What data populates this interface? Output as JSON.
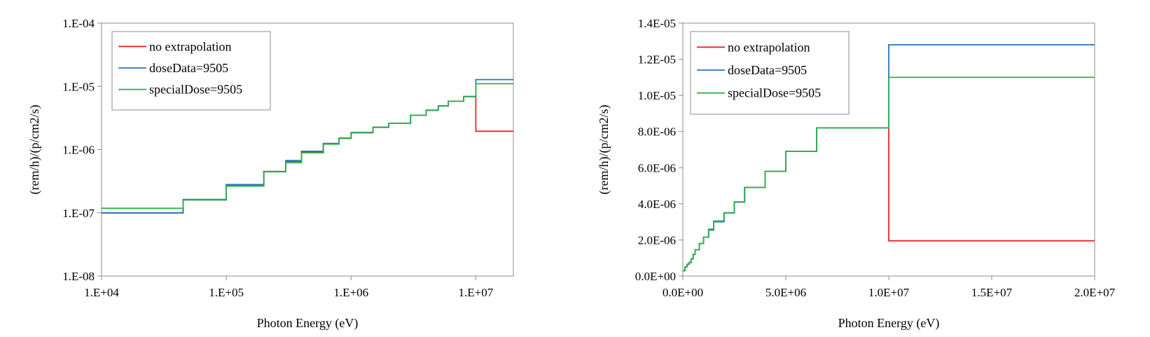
{
  "chart_data": [
    {
      "type": "line",
      "log_x": true,
      "log_y": true,
      "xlabel": "Photon Energy (eV)",
      "ylabel": "(rem/h)/(p/cm2/s)",
      "xlim": [
        10000,
        20000000
      ],
      "ylim": [
        1e-08,
        0.0001
      ],
      "xticks": [
        "1.E+04",
        "1.E+05",
        "1.E+06",
        "1.E+07"
      ],
      "xtick_values": [
        10000,
        100000,
        1000000,
        10000000
      ],
      "yticks": [
        "1.E-08",
        "1.E-07",
        "1.E-06",
        "1.E-05",
        "1.E-04"
      ],
      "ytick_values": [
        1e-08,
        1e-07,
        1e-06,
        1e-05,
        0.0001
      ],
      "grid": false,
      "legend_position": "top-left",
      "series": [
        {
          "name": "no extrapolation",
          "color": "#e8262a",
          "step": true,
          "x": [
            10000,
            45000,
            100000,
            200000,
            300000,
            400000,
            600000,
            800000,
            1000000,
            1500000,
            2000000,
            3000000,
            4000000,
            5000000,
            6000000,
            8000000,
            10000000,
            20000000
          ],
          "y": [
            1e-07,
            1.6e-07,
            2.75e-07,
            4.5e-07,
            6.5e-07,
            9.2e-07,
            1.25e-06,
            1.52e-06,
            1.86e-06,
            2.25e-06,
            2.6e-06,
            3.5e-06,
            4.2e-06,
            4.9e-06,
            5.8e-06,
            6.9e-06,
            1.95e-06,
            1.95e-06
          ]
        },
        {
          "name": "doseData=9505",
          "color": "#2f73c0",
          "step": true,
          "x": [
            10000,
            45000,
            100000,
            200000,
            300000,
            400000,
            600000,
            800000,
            1000000,
            1500000,
            2000000,
            3000000,
            4000000,
            5000000,
            6000000,
            8000000,
            10000000,
            20000000
          ],
          "y": [
            1e-07,
            1.63e-07,
            2.8e-07,
            4.5e-07,
            6.7e-07,
            9.4e-07,
            1.25e-06,
            1.52e-06,
            1.86e-06,
            2.25e-06,
            2.6e-06,
            3.5e-06,
            4.2e-06,
            4.9e-06,
            5.8e-06,
            6.9e-06,
            1.28e-05,
            1.28e-05
          ]
        },
        {
          "name": "specialDose=9505",
          "color": "#2bb24c",
          "step": true,
          "x": [
            10000,
            45000,
            100000,
            200000,
            300000,
            400000,
            600000,
            800000,
            1000000,
            1500000,
            2000000,
            3000000,
            4000000,
            5000000,
            6000000,
            8000000,
            10000000,
            20000000
          ],
          "y": [
            1.18e-07,
            1.6e-07,
            2.65e-07,
            4.45e-07,
            6.2e-07,
            8.9e-07,
            1.22e-06,
            1.5e-06,
            1.84e-06,
            2.25e-06,
            2.6e-06,
            3.5e-06,
            4.2e-06,
            4.9e-06,
            5.8e-06,
            6.9e-06,
            1.1e-05,
            1.1e-05
          ]
        }
      ]
    },
    {
      "type": "line",
      "log_x": false,
      "log_y": false,
      "xlabel": "Photon Energy (eV)",
      "ylabel": "(rem/h)/(p/cm2/s)",
      "xlim": [
        0,
        20000000
      ],
      "ylim": [
        0,
        1.4e-05
      ],
      "xticks": [
        "0.0E+00",
        "5.0E+06",
        "1.0E+07",
        "1.5E+07",
        "2.0E+07"
      ],
      "xtick_values": [
        0,
        5000000,
        10000000,
        15000000,
        20000000
      ],
      "yticks": [
        "0.0E+00",
        "2.0E-06",
        "4.0E-06",
        "6.0E-06",
        "8.0E-06",
        "1.0E-05",
        "1.2E-05",
        "1.4E-05"
      ],
      "ytick_values": [
        0,
        2e-06,
        4e-06,
        6e-06,
        8e-06,
        1e-05,
        1.2e-05,
        1.4e-05
      ],
      "grid": false,
      "legend_position": "top-left",
      "series": [
        {
          "name": "no extrapolation",
          "color": "#e8262a",
          "step": true,
          "x": [
            0,
            100000,
            200000,
            300000,
            400000,
            500000,
            600000,
            800000,
            1000000,
            1250000,
            1500000,
            2000000,
            2500000,
            3000000,
            4000000,
            5000000,
            6500000,
            8000000,
            10000000,
            20000000
          ],
          "y": [
            3e-07,
            5e-07,
            6.5e-07,
            7.5e-07,
            9.5e-07,
            1.2e-06,
            1.45e-06,
            1.8e-06,
            2.15e-06,
            2.55e-06,
            3e-06,
            3.5e-06,
            4.1e-06,
            4.9e-06,
            5.8e-06,
            6.9e-06,
            8.2e-06,
            8.2e-06,
            1.95e-06,
            1.95e-06
          ]
        },
        {
          "name": "doseData=9505",
          "color": "#2f73c0",
          "step": true,
          "x": [
            0,
            100000,
            200000,
            300000,
            400000,
            500000,
            600000,
            800000,
            1000000,
            1250000,
            1500000,
            2000000,
            2500000,
            3000000,
            4000000,
            5000000,
            6500000,
            8000000,
            10000000,
            20000000
          ],
          "y": [
            3e-07,
            5e-07,
            6.5e-07,
            7.5e-07,
            9.5e-07,
            1.2e-06,
            1.45e-06,
            1.8e-06,
            2.15e-06,
            2.55e-06,
            3e-06,
            3.5e-06,
            4.1e-06,
            4.9e-06,
            5.8e-06,
            6.9e-06,
            8.2e-06,
            8.2e-06,
            1.28e-05,
            1.28e-05
          ]
        },
        {
          "name": "specialDose=9505",
          "color": "#2bb24c",
          "step": true,
          "x": [
            0,
            100000,
            200000,
            300000,
            400000,
            500000,
            600000,
            800000,
            1000000,
            1250000,
            1500000,
            2000000,
            2500000,
            3000000,
            4000000,
            5000000,
            6500000,
            8000000,
            10000000,
            20000000
          ],
          "y": [
            3e-07,
            5e-07,
            6.5e-07,
            7.5e-07,
            9.5e-07,
            1.2e-06,
            1.45e-06,
            1.8e-06,
            2.15e-06,
            2.6e-06,
            3.05e-06,
            3.5e-06,
            4.1e-06,
            4.9e-06,
            5.8e-06,
            6.9e-06,
            8.2e-06,
            8.2e-06,
            1.1e-05,
            1.1e-05
          ]
        }
      ]
    }
  ]
}
